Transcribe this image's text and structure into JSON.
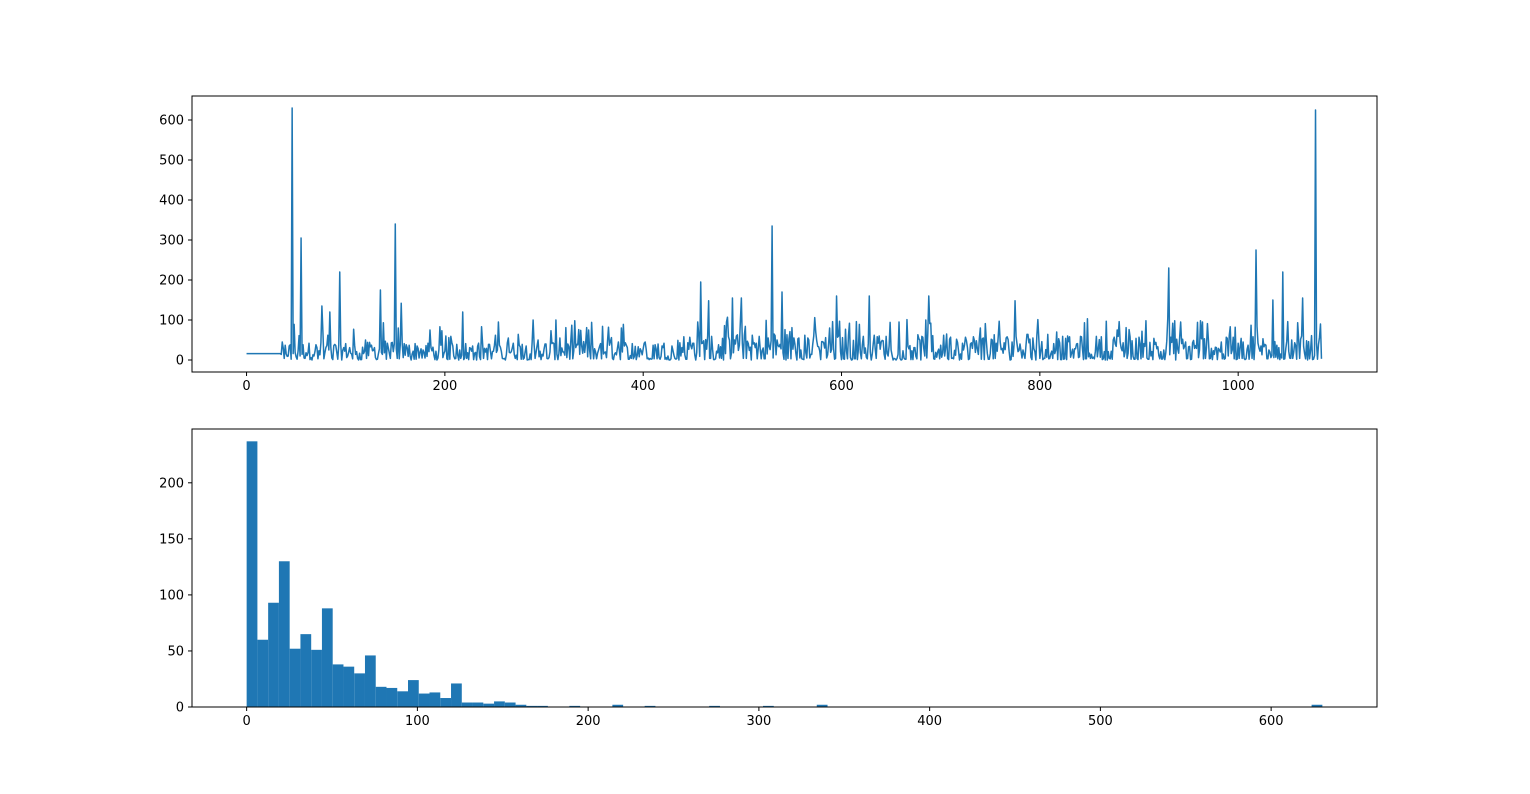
{
  "figure": {
    "background": "#ffffff"
  },
  "chart_data": [
    {
      "type": "line",
      "title": "",
      "xlabel": "",
      "ylabel": "",
      "xlim": [
        -55,
        1140
      ],
      "ylim": [
        -30,
        660
      ],
      "xticks": [
        0,
        200,
        400,
        600,
        800,
        1000
      ],
      "yticks": [
        0,
        100,
        200,
        300,
        400,
        500,
        600
      ],
      "color": "#1f77b4",
      "grid": false,
      "legend": "none",
      "n_points": 1085,
      "flat_segment": {
        "x_end": 34,
        "value": 16
      },
      "peaks": [
        {
          "x": 46,
          "y": 630
        },
        {
          "x": 55,
          "y": 305
        },
        {
          "x": 76,
          "y": 135
        },
        {
          "x": 84,
          "y": 120
        },
        {
          "x": 94,
          "y": 220
        },
        {
          "x": 135,
          "y": 175
        },
        {
          "x": 150,
          "y": 340
        },
        {
          "x": 156,
          "y": 142
        },
        {
          "x": 218,
          "y": 120
        },
        {
          "x": 289,
          "y": 100
        },
        {
          "x": 458,
          "y": 195
        },
        {
          "x": 466,
          "y": 148
        },
        {
          "x": 490,
          "y": 155
        },
        {
          "x": 499,
          "y": 155
        },
        {
          "x": 530,
          "y": 335
        },
        {
          "x": 540,
          "y": 170
        },
        {
          "x": 595,
          "y": 160
        },
        {
          "x": 628,
          "y": 160
        },
        {
          "x": 688,
          "y": 160
        },
        {
          "x": 775,
          "y": 148
        },
        {
          "x": 930,
          "y": 230
        },
        {
          "x": 1018,
          "y": 275
        },
        {
          "x": 1035,
          "y": 150
        },
        {
          "x": 1045,
          "y": 220
        },
        {
          "x": 1065,
          "y": 155
        },
        {
          "x": 1078,
          "y": 625
        },
        {
          "x": 1083,
          "y": 90
        }
      ]
    },
    {
      "type": "bar",
      "subtype": "histogram",
      "title": "",
      "xlabel": "",
      "ylabel": "",
      "xlim": [
        -32,
        662
      ],
      "ylim": [
        0,
        248
      ],
      "xticks": [
        0,
        100,
        200,
        300,
        400,
        500,
        600
      ],
      "yticks": [
        0,
        50,
        100,
        150,
        200
      ],
      "color": "#1f77b4",
      "grid": false,
      "legend": "none",
      "bin_width": 6.3,
      "bin_start": 0,
      "counts": [
        237,
        60,
        93,
        130,
        52,
        65,
        51,
        88,
        38,
        36,
        30,
        46,
        18,
        17,
        14,
        24,
        12,
        13,
        8,
        21,
        4,
        4,
        3,
        5,
        4,
        2,
        1,
        1,
        0,
        0,
        1,
        0,
        0,
        0,
        2,
        0,
        0,
        1,
        0,
        0,
        0,
        0,
        0,
        1,
        0,
        0,
        0,
        0,
        1,
        0,
        0,
        0,
        0,
        2,
        0,
        0,
        0,
        0,
        0,
        0,
        0,
        0,
        0,
        0,
        0,
        0,
        0,
        0,
        0,
        0,
        0,
        0,
        0,
        0,
        0,
        0,
        0,
        0,
        0,
        0,
        0,
        0,
        0,
        0,
        0,
        0,
        0,
        0,
        0,
        0,
        0,
        0,
        0,
        0,
        0,
        0,
        0,
        0,
        0,
        2
      ]
    }
  ]
}
